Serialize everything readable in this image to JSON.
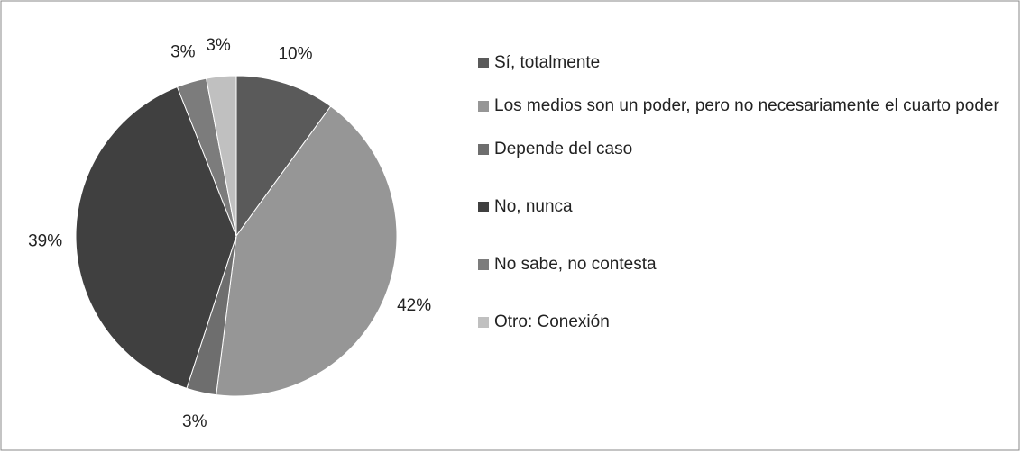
{
  "chart_data": {
    "type": "pie",
    "categories": [
      "Sí, totalmente",
      "Los medios son un poder, pero no necesariamente el cuarto poder",
      "Depende del caso",
      "No, nunca",
      "No sabe, no contesta",
      "Otro: Conexión"
    ],
    "values": [
      10,
      42,
      3,
      39,
      3,
      3
    ],
    "value_labels": [
      "10%",
      "42%",
      "3%",
      "39%",
      "3%",
      "3%"
    ],
    "colors": [
      "#5a5a5a",
      "#969696",
      "#6e6e6e",
      "#404040",
      "#7c7c7c",
      "#c0c0c0"
    ],
    "legend": "right"
  }
}
